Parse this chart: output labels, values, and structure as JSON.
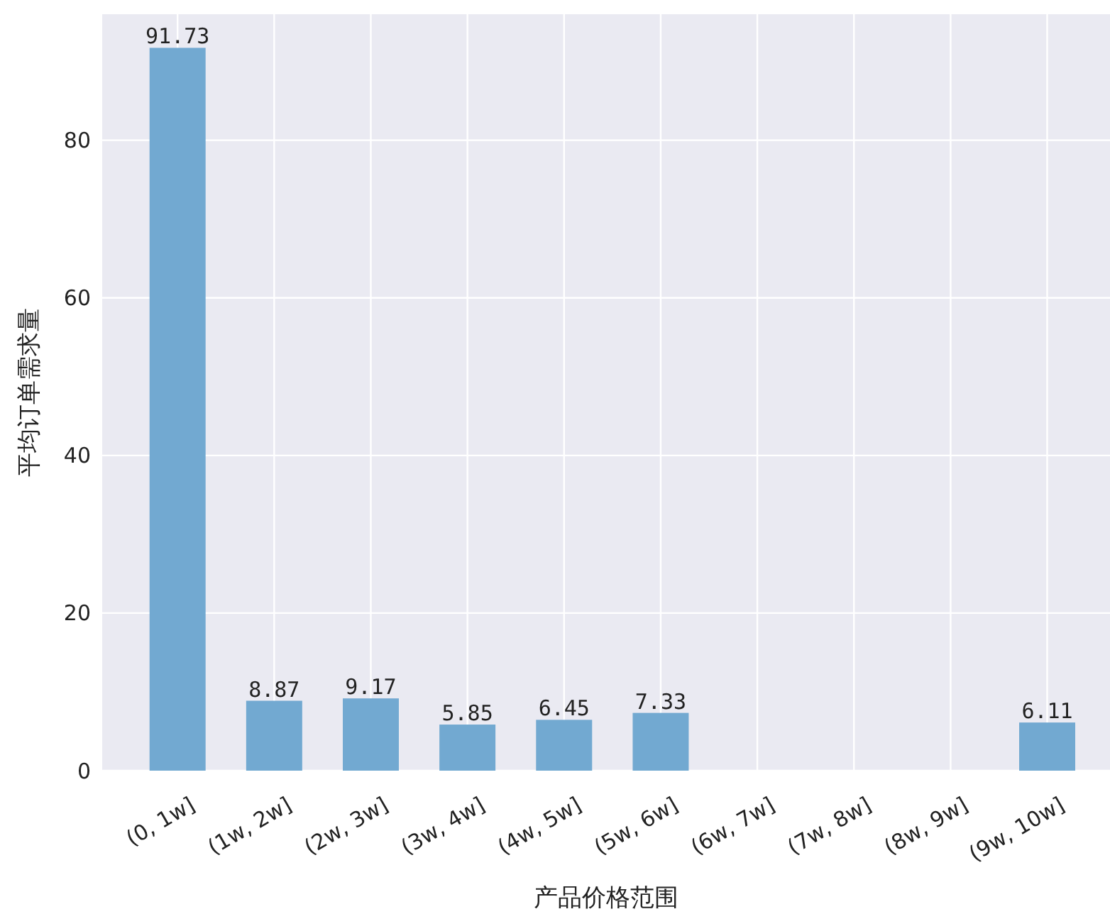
{
  "chart_data": {
    "type": "bar",
    "xlabel": "产品价格范围",
    "ylabel": "平均订单需求量",
    "categories": [
      "(0, 1w]",
      "(1w, 2w]",
      "(2w, 3w]",
      "(3w, 4w]",
      "(4w, 5w]",
      "(5w, 6w]",
      "(6w, 7w]",
      "(7w, 8w]",
      "(8w, 9w]",
      "(9w, 10w]"
    ],
    "values": [
      91.73,
      8.87,
      9.17,
      5.85,
      6.45,
      7.33,
      null,
      null,
      null,
      6.11
    ],
    "color": "#72a9d1",
    "ylim": [
      0,
      96
    ],
    "yticks": [
      0,
      20,
      40,
      60,
      80
    ],
    "grid": true,
    "data_labels": true
  }
}
